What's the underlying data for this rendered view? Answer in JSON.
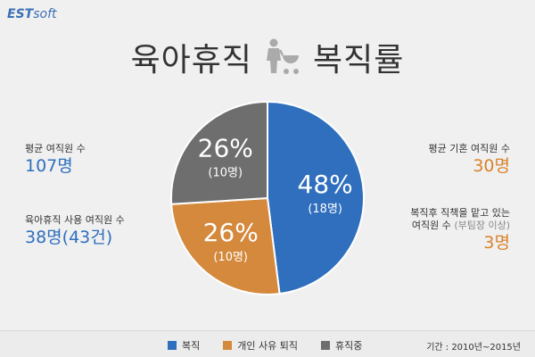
{
  "logo": {
    "brand": "EST",
    "soft": "soft"
  },
  "title": {
    "left": "육아휴직",
    "right": "복직률",
    "icon": "mother-with-stroller-icon"
  },
  "stats": {
    "avg_female_employees": {
      "label": "평균 여직원 수",
      "value": "107명"
    },
    "parental_leave_users": {
      "label": "육아휴직 사용 여직원 수",
      "value": "38명(43건)"
    },
    "avg_married_female": {
      "label": "평균 기혼 여직원 수",
      "value": "30명"
    },
    "returned_managers": {
      "label_line1": "복직후 직책을 맡고 있는",
      "label_line2": "여직원 수",
      "label_sub": "(부팀장 이상)",
      "value": "3명"
    }
  },
  "chart_data": {
    "type": "pie",
    "title": "육아휴직 복직률",
    "slices": [
      {
        "name": "복직",
        "percent": 48,
        "percent_label": "48%",
        "count_label": "(18명)",
        "color": "#2f6fbd"
      },
      {
        "name": "개인 사유 퇴직",
        "percent": 26,
        "percent_label": "26%",
        "count_label": "(10명)",
        "color": "#d4893c"
      },
      {
        "name": "휴직중",
        "percent": 26,
        "percent_label": "26%",
        "count_label": "(10명)",
        "color": "#6e6e6e"
      }
    ],
    "legend_position": "bottom",
    "period": "기간 : 2010년~2015년"
  }
}
